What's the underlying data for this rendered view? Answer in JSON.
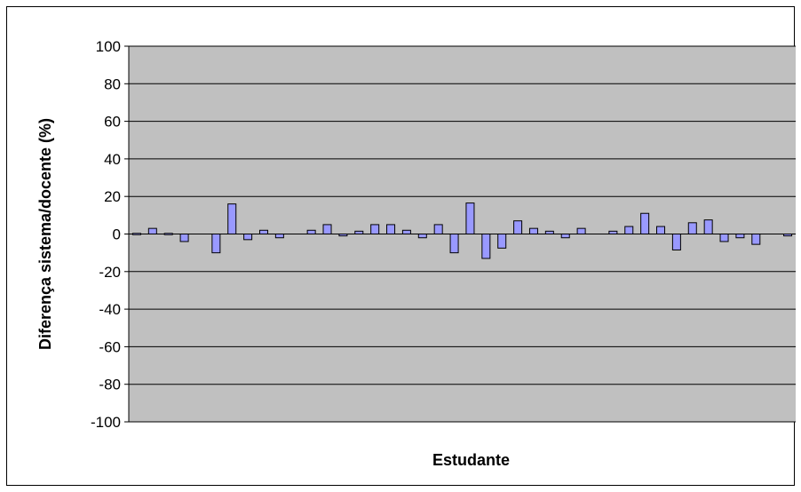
{
  "chart_data": {
    "type": "bar",
    "title": "",
    "xlabel": "Estudante",
    "ylabel": "Diferença sistema/docente (%)",
    "ylim": [
      -100,
      100
    ],
    "yticks": [
      100,
      80,
      60,
      40,
      20,
      0,
      -20,
      -40,
      -60,
      -80,
      -100
    ],
    "ytick_labels": [
      "100",
      "80",
      "60",
      "40",
      "20",
      "0",
      "-20",
      "-40",
      "-60",
      "-80",
      "-100"
    ],
    "grid": true,
    "legend": "none",
    "colors": {
      "plot_background": "#c0c0c0",
      "bar_fill": "#9999ff",
      "bar_stroke": "#000000",
      "gridline": "#000000"
    },
    "values": [
      0,
      3,
      0.5,
      -4,
      null,
      -10,
      16,
      -3,
      2,
      -2,
      null,
      2,
      5,
      -1,
      1.5,
      5,
      5,
      2,
      -2,
      5,
      -10,
      16.5,
      -13,
      -7.5,
      7,
      3,
      1.5,
      -2,
      3,
      null,
      1.5,
      4,
      11,
      4,
      -8.5,
      6,
      7.5,
      -4,
      -2,
      -5.5,
      null,
      -1
    ]
  }
}
